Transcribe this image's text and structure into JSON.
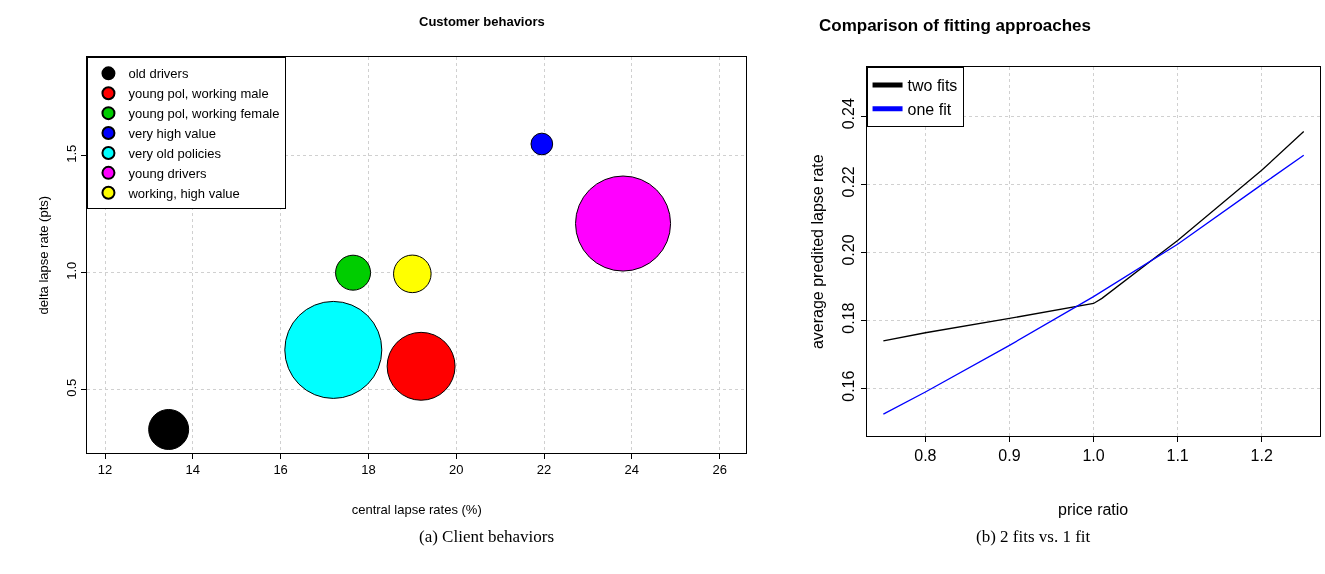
{
  "chart_data": [
    {
      "type": "bubble",
      "title": "Customer behaviors",
      "xlabel": "central lapse rates (%)",
      "ylabel": "delta lapse rate (pts)",
      "xlim": [
        11.6,
        26.6
      ],
      "xticks": [
        12,
        14,
        16,
        18,
        20,
        22,
        24,
        26
      ],
      "ylim": [
        0.23,
        1.92
      ],
      "yticks": [
        {
          "value": 0.5,
          "label": "0.5"
        },
        {
          "value": 1.0,
          "label": "1.0"
        },
        {
          "value": 1.5,
          "label": "1.5"
        }
      ],
      "grid": true,
      "legend": "top left",
      "annotations": [
        "(a) Client behaviors"
      ],
      "series": [
        {
          "name": "old drivers",
          "color": "#000000",
          "x": [
            13.45
          ],
          "values": [
            0.33
          ],
          "sizes": [
            0.17
          ]
        },
        {
          "name": "young pol, working male",
          "color": "#ff0000",
          "x": [
            19.2
          ],
          "values": [
            0.6
          ],
          "sizes": [
            0.49
          ]
        },
        {
          "name": "young pol, working female",
          "color": "#00cd00",
          "x": [
            17.65
          ],
          "values": [
            1.0
          ],
          "sizes": [
            0.13
          ]
        },
        {
          "name": "very high value",
          "color": "#0000ff",
          "x": [
            21.95
          ],
          "values": [
            1.55
          ],
          "sizes": [
            0.05
          ]
        },
        {
          "name": "very old policies",
          "color": "#00ffff",
          "x": [
            17.2
          ],
          "values": [
            0.67
          ],
          "sizes": [
            1
          ]
        },
        {
          "name": "young drivers",
          "color": "#ff00ff",
          "x": [
            23.8
          ],
          "values": [
            1.21
          ],
          "sizes": [
            0.96
          ]
        },
        {
          "name": "working, high value",
          "color": "#ffff00",
          "x": [
            19.0
          ],
          "values": [
            0.995
          ],
          "sizes": [
            0.15
          ]
        }
      ]
    },
    {
      "type": "line",
      "title": "Comparison of fitting approaches",
      "xlabel": "price ratio",
      "ylabel": "average predited lapse rate",
      "xlim": [
        0.73,
        1.269
      ],
      "xticks": [
        {
          "value": 0.8,
          "label": "0.8"
        },
        {
          "value": 0.9,
          "label": "0.9"
        },
        {
          "value": 1.0,
          "label": "1.0"
        },
        {
          "value": 1.1,
          "label": "1.1"
        },
        {
          "value": 1.2,
          "label": "1.2"
        }
      ],
      "ylim": [
        0.146,
        0.2544
      ],
      "yticks": [
        {
          "value": 0.16,
          "label": "0.16"
        },
        {
          "value": 0.18,
          "label": "0.18"
        },
        {
          "value": 0.2,
          "label": "0.20"
        },
        {
          "value": 0.22,
          "label": "0.22"
        },
        {
          "value": 0.24,
          "label": "0.24"
        }
      ],
      "grid": true,
      "legend": "top left",
      "line_style": "solid",
      "annotations": [
        "(b) 2 fits vs. 1 fit"
      ],
      "series": [
        {
          "name": "two fits",
          "color": "#000000",
          "x": [
            0.75,
            0.8,
            0.9,
            1.0,
            1.01,
            1.1,
            1.2,
            1.25
          ],
          "values": [
            0.174,
            0.1764,
            0.1806,
            0.185,
            0.1865,
            0.2035,
            0.2241,
            0.2355
          ]
        },
        {
          "name": "one fit",
          "color": "#0000ff",
          "x": [
            0.75,
            0.8,
            0.9,
            1.0,
            1.1,
            1.2,
            1.25
          ],
          "values": [
            0.1525,
            0.159,
            0.1727,
            0.187,
            0.2024,
            0.2199,
            0.2285
          ]
        }
      ]
    }
  ]
}
